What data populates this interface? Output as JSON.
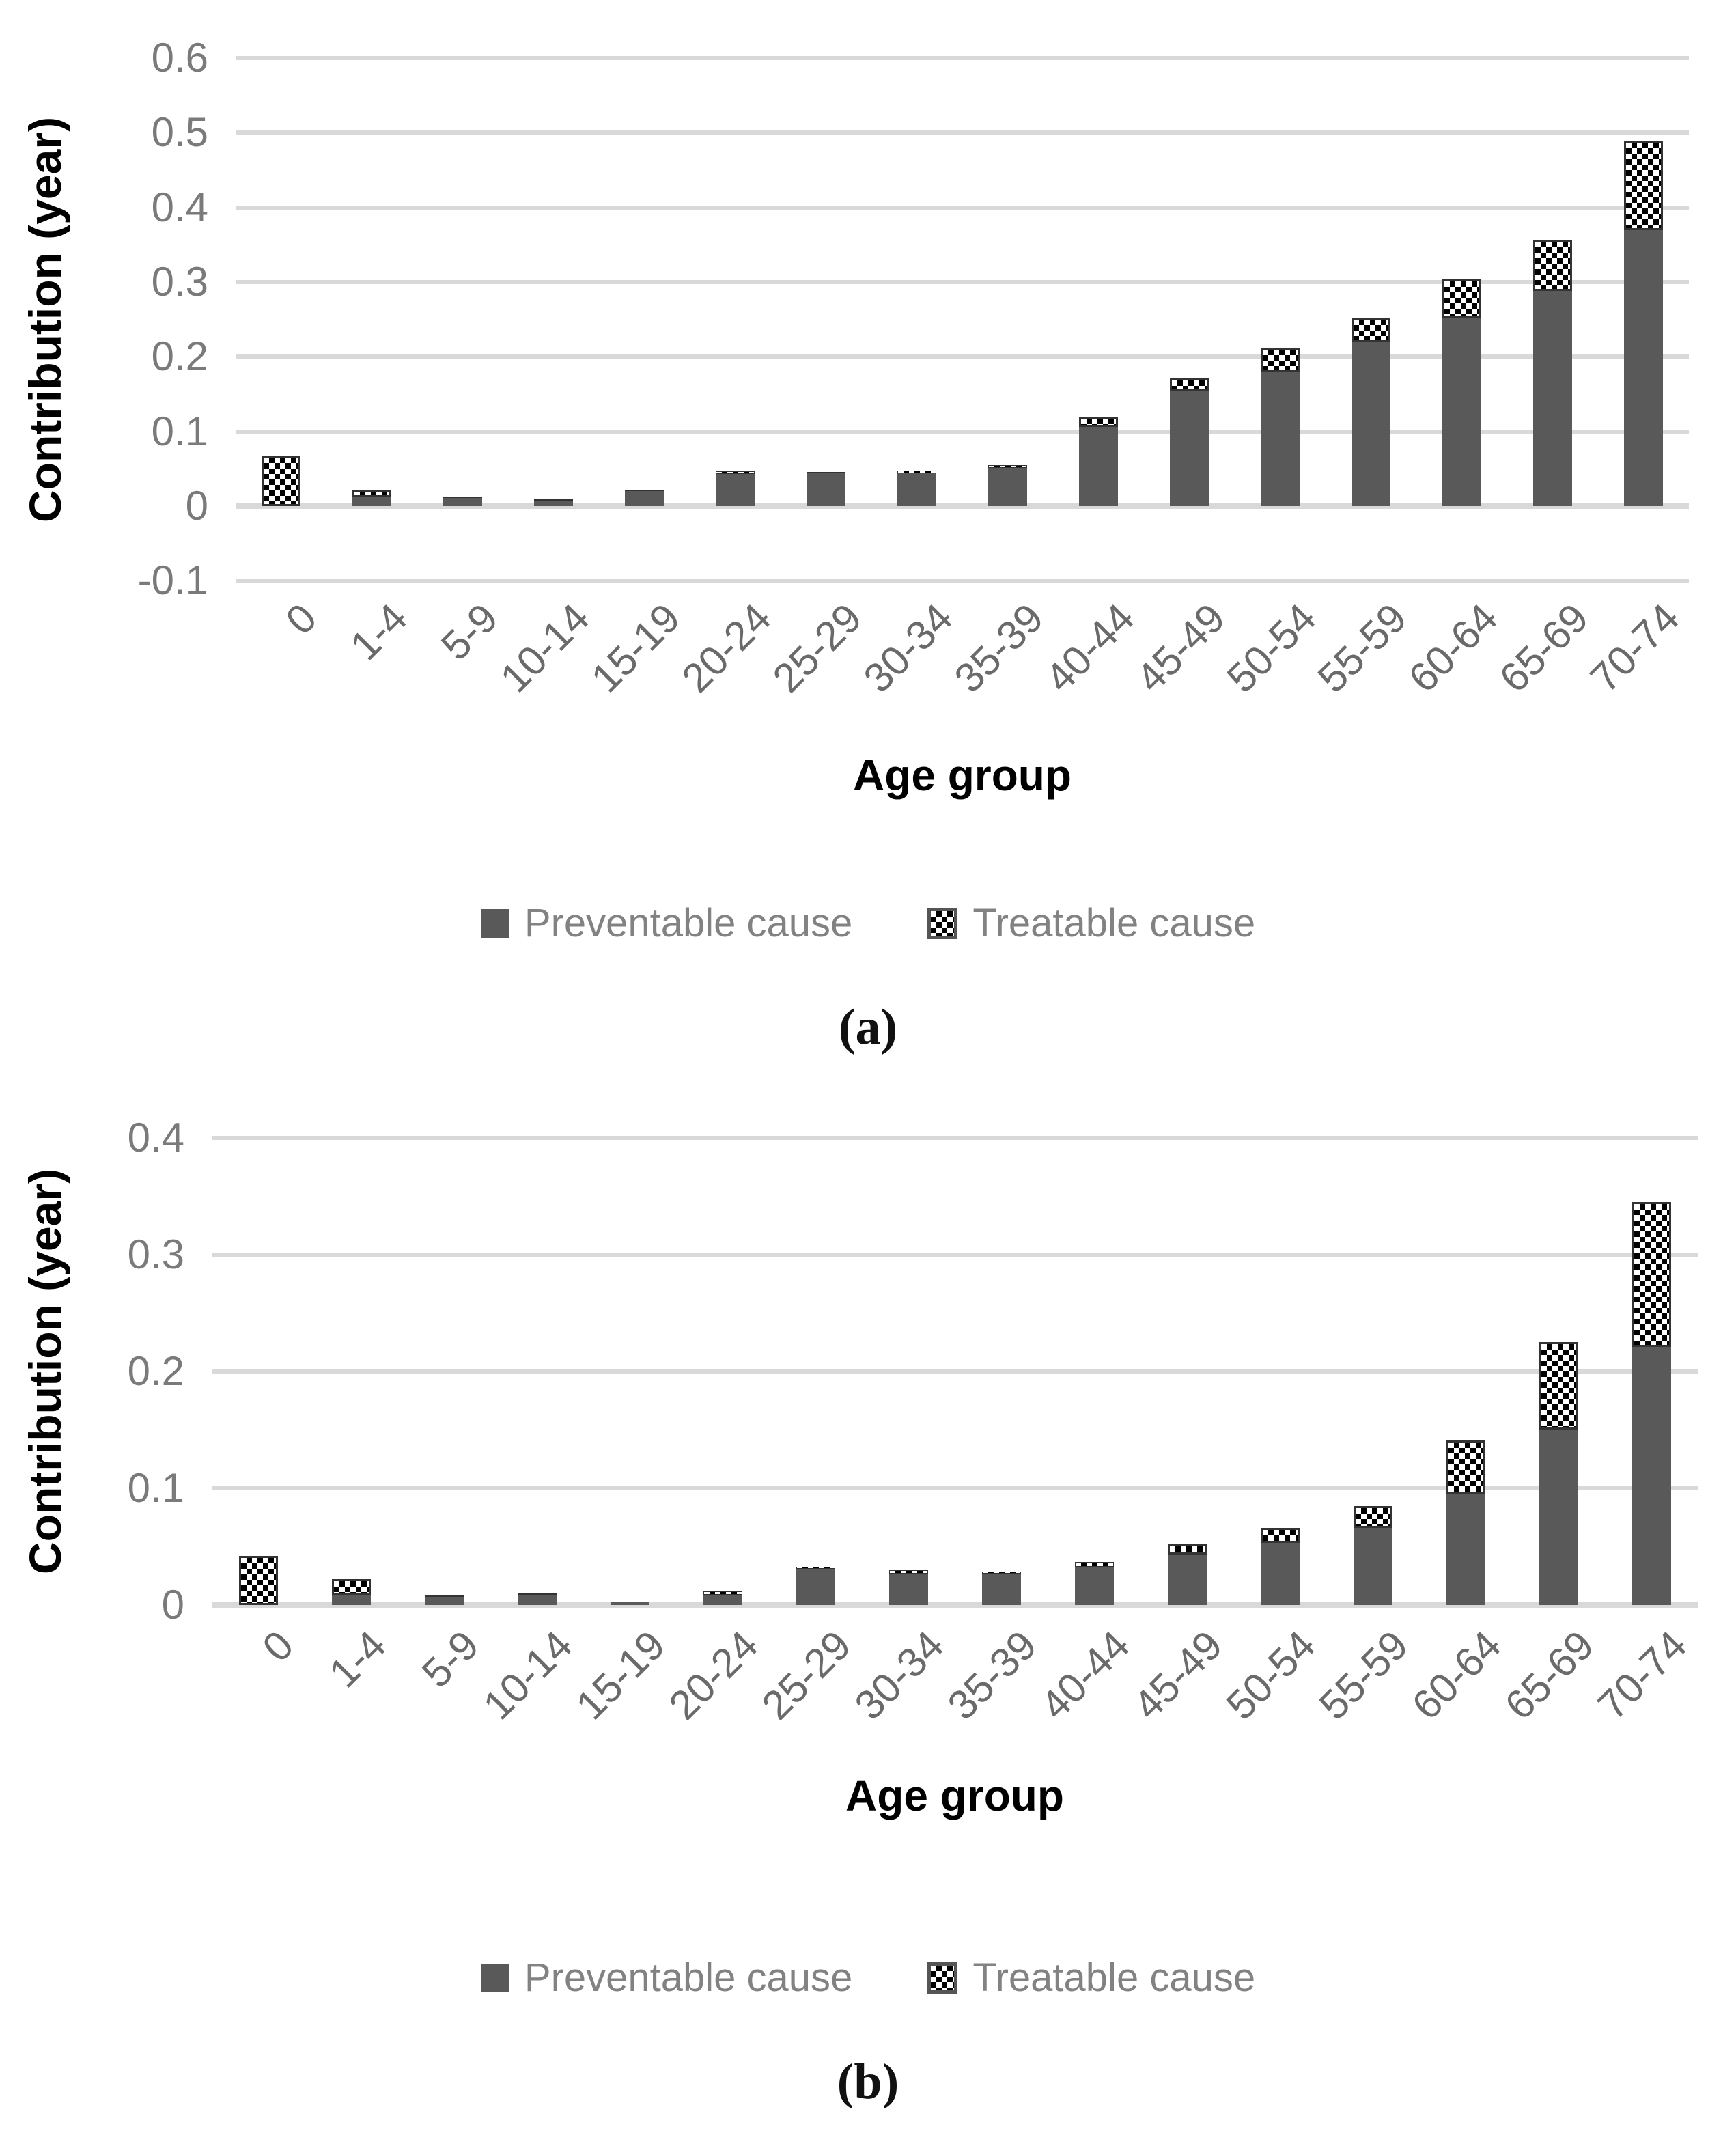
{
  "figure": {
    "background": "#ffffff",
    "colors": {
      "preventable_fill": "#595959",
      "treatable_pattern": "black-on-white diagonal checker hatch",
      "gridline": "#d9d9d9",
      "tick_text": "#7a7a7a",
      "x_tick_text": "#6a6a6a",
      "axis_title_text": "#000000",
      "legend_text": "#828282"
    }
  },
  "chart_data": [
    {
      "id": "a",
      "type": "bar",
      "stacked": true,
      "title": "",
      "caption": "(a)",
      "ylabel": "Contribution (year)",
      "xlabel": "Age group",
      "ylim": [
        -0.1,
        0.6
      ],
      "yticks": [
        "0.6",
        "0.5",
        "0.4",
        "0.3",
        "0.2",
        "0.1",
        "0",
        "-0.1"
      ],
      "grid": "horizontal",
      "legend_position": "bottom",
      "legend": [
        "Preventable cause",
        "Treatable cause"
      ],
      "categories": [
        "0",
        "1-4",
        "5-9",
        "10-14",
        "15-19",
        "20-24",
        "25-29",
        "30-34",
        "35-39",
        "40-44",
        "45-49",
        "50-54",
        "55-59",
        "60-64",
        "65-69",
        "70-74"
      ],
      "series": [
        {
          "name": "Preventable cause",
          "values": [
            0,
            0.012,
            0.012,
            0.008,
            0.021,
            0.043,
            0.044,
            0.044,
            0.051,
            0.106,
            0.154,
            0.18,
            0.22,
            0.252,
            0.288,
            0.37
          ]
        },
        {
          "name": "Treatable cause",
          "values": [
            0.068,
            0.009,
            0.001,
            0.001,
            0.001,
            0.004,
            0.002,
            0.004,
            0.004,
            0.014,
            0.017,
            0.032,
            0.033,
            0.052,
            0.069,
            0.12
          ]
        }
      ]
    },
    {
      "id": "b",
      "type": "bar",
      "stacked": true,
      "title": "",
      "caption": "(b)",
      "ylabel": "Contribution (year)",
      "xlabel": "Age group",
      "ylim": [
        0,
        0.4
      ],
      "yticks": [
        "0.4",
        "0.3",
        "0.2",
        "0.1",
        "0"
      ],
      "grid": "horizontal",
      "legend_position": "bottom",
      "legend": [
        "Preventable cause",
        "Treatable cause"
      ],
      "categories": [
        "0",
        "1-4",
        "5-9",
        "10-14",
        "15-19",
        "20-24",
        "25-29",
        "30-34",
        "35-39",
        "40-44",
        "45-49",
        "50-54",
        "55-59",
        "60-64",
        "65-69",
        "70-74"
      ],
      "series": [
        {
          "name": "Preventable cause",
          "values": [
            0,
            0.008,
            0.007,
            0.009,
            0.003,
            0.009,
            0.031,
            0.027,
            0.027,
            0.033,
            0.043,
            0.053,
            0.066,
            0.095,
            0.15,
            0.221
          ]
        },
        {
          "name": "Treatable cause",
          "values": [
            0.042,
            0.014,
            0.001,
            0.001,
            0,
            0.003,
            0.002,
            0.003,
            0.002,
            0.004,
            0.009,
            0.013,
            0.019,
            0.046,
            0.075,
            0.124
          ]
        }
      ]
    }
  ]
}
